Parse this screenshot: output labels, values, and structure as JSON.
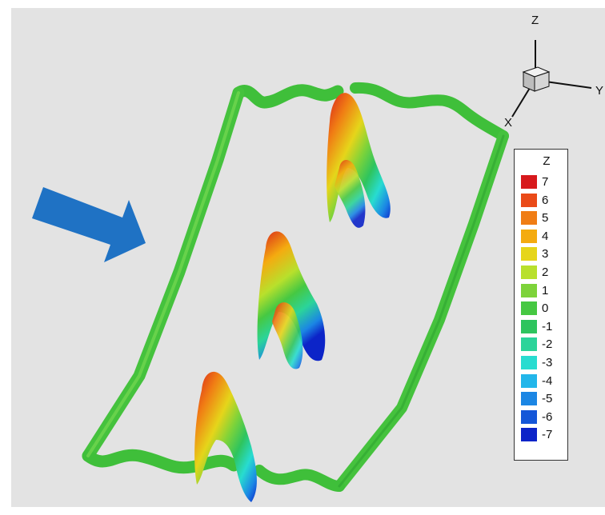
{
  "axes_triad": {
    "z_label": "Z",
    "y_label": "Y",
    "x_label": "X"
  },
  "flow_arrow": {
    "color": "#1f72c4"
  },
  "legend": {
    "title": "Z",
    "levels": [
      {
        "label": "7",
        "color": "#d7191c"
      },
      {
        "label": "6",
        "color": "#ea4a18"
      },
      {
        "label": "5",
        "color": "#f07d14"
      },
      {
        "label": "4",
        "color": "#f4ab10"
      },
      {
        "label": "3",
        "color": "#e6d51a"
      },
      {
        "label": "2",
        "color": "#b8e02c"
      },
      {
        "label": "1",
        "color": "#7dd33a"
      },
      {
        "label": "0",
        "color": "#46c842"
      },
      {
        "label": "-1",
        "color": "#2ec45e"
      },
      {
        "label": "-2",
        "color": "#2bd49a"
      },
      {
        "label": "-3",
        "color": "#28dcd0"
      },
      {
        "label": "-4",
        "color": "#22b6ea"
      },
      {
        "label": "-5",
        "color": "#1b86e4"
      },
      {
        "label": "-6",
        "color": "#1456d8"
      },
      {
        "label": "-7",
        "color": "#0c24c8"
      }
    ]
  }
}
